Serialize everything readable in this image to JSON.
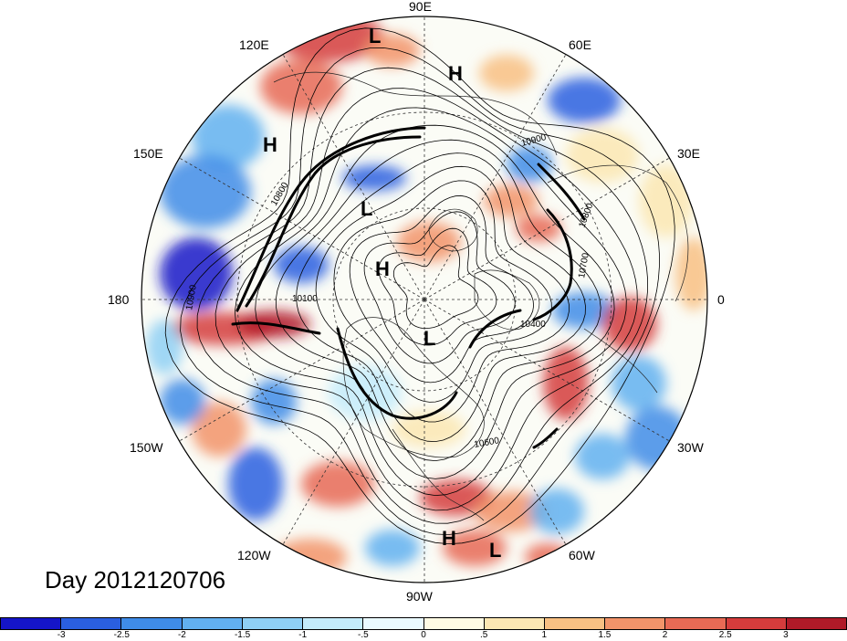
{
  "title": "Day 2012120706",
  "longitude_labels": {
    "n90e": "90E",
    "n60e": "60E",
    "n30e": "30E",
    "n0": "0",
    "n30w": "30W",
    "n60w": "60W",
    "n90w": "90W",
    "n120w": "120W",
    "n150w": "150W",
    "n180": "180",
    "n150e": "150E",
    "n120e": "120E"
  },
  "pressure_centers": [
    {
      "label": "L",
      "kind": "low"
    },
    {
      "label": "H",
      "kind": "high"
    },
    {
      "label": "H",
      "kind": "high"
    },
    {
      "label": "L",
      "kind": "low"
    },
    {
      "label": "H",
      "kind": "high"
    },
    {
      "label": "L",
      "kind": "low"
    },
    {
      "label": "H",
      "kind": "high"
    },
    {
      "label": "L",
      "kind": "low"
    }
  ],
  "contour_labels": [
    "10900",
    "10800",
    "10700",
    "10400",
    "10600",
    "10100",
    "10900",
    "10800"
  ],
  "colorbar": {
    "colors": [
      "#1515c8",
      "#2a5fe0",
      "#3f8ce8",
      "#62b0f0",
      "#8fd0f5",
      "#c4ecfb",
      "#eafaff",
      "#fffbe4",
      "#fce7b3",
      "#f8c083",
      "#f2946a",
      "#e86a55",
      "#d53c3c",
      "#b01a28"
    ],
    "ticks": [
      "-3",
      "-2.5",
      "-2",
      "-1.5",
      "-1",
      "-.5",
      "0",
      ".5",
      "1",
      "1.5",
      "2",
      "2.5",
      "3"
    ]
  }
}
